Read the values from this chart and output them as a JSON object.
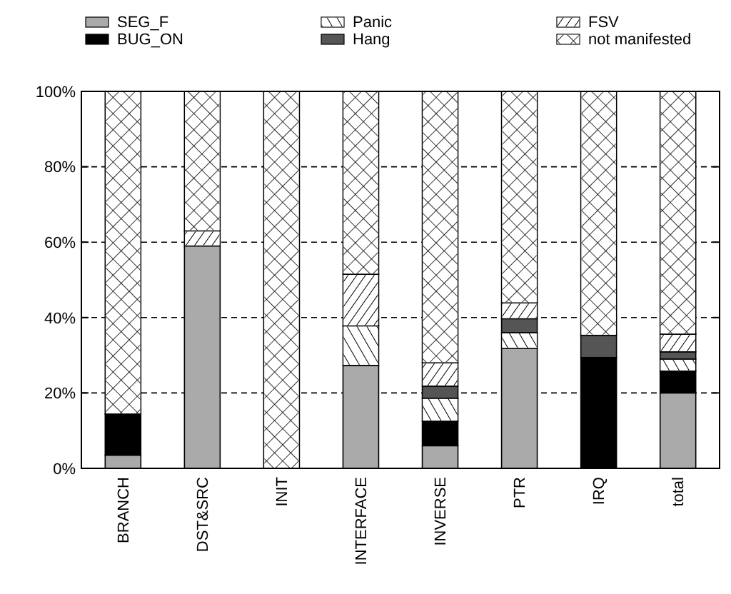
{
  "chart_data": {
    "type": "bar",
    "stacked": true,
    "categories": [
      "BRANCH",
      "DST&SRC",
      "INIT",
      "INTERFACE",
      "INVERSE",
      "PTR",
      "IRQ",
      "total"
    ],
    "series": [
      {
        "name": "SEG_F",
        "color": "#aaaaaa",
        "values": [
          3.5,
          59,
          0,
          27.3,
          6,
          31.8,
          0,
          20
        ]
      },
      {
        "name": "BUG_ON",
        "color": "#000000",
        "values": [
          10.9,
          0,
          0,
          0,
          6.5,
          0,
          29.4,
          5.8
        ]
      },
      {
        "name": "Panic",
        "color": "#ffffff",
        "values": [
          0,
          0,
          0,
          10.5,
          6.1,
          4.2,
          0,
          3.2
        ]
      },
      {
        "name": "Hang",
        "color": "#555555",
        "values": [
          0,
          0,
          0,
          0,
          3.2,
          3.7,
          5.9,
          1.9
        ]
      },
      {
        "name": "FSV",
        "color": "#ffffff",
        "values": [
          0,
          4,
          0,
          13.7,
          6.2,
          4.2,
          0,
          4.7
        ]
      },
      {
        "name": "not manifested",
        "color": "#ffffff",
        "values": [
          85.6,
          37,
          100,
          48.5,
          72,
          56.1,
          64.7,
          64.4
        ]
      }
    ],
    "ylim": [
      0,
      100
    ],
    "yticks": [
      {
        "value": 0,
        "label": "0%"
      },
      {
        "value": 20,
        "label": "20%"
      },
      {
        "value": 40,
        "label": "40%"
      },
      {
        "value": 60,
        "label": "60%"
      },
      {
        "value": 80,
        "label": "80%"
      },
      {
        "value": 100,
        "label": "100%"
      }
    ],
    "grid": "y",
    "legend": "top"
  }
}
